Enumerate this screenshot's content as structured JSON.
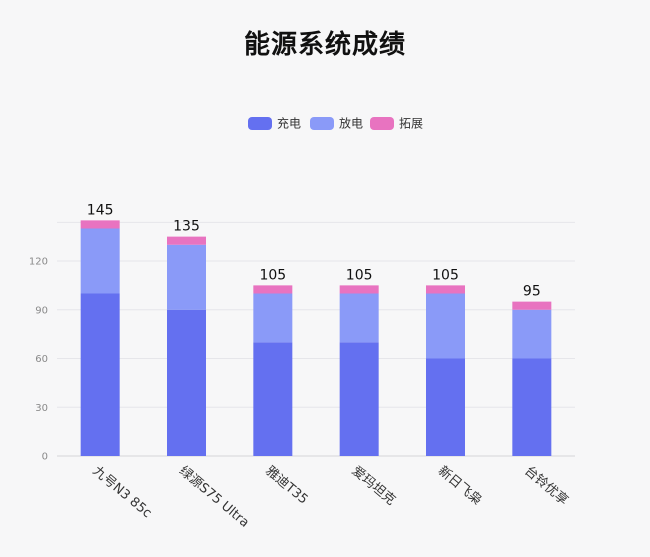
{
  "chart_data": {
    "type": "bar",
    "stacked": true,
    "title": "能源系统成绩",
    "categories": [
      "九号N3 85c",
      "绿源S75 Ultra",
      "雅迪T35",
      "爱玛坦克",
      "新日飞枭",
      "台铃优享"
    ],
    "series": [
      {
        "name": "充电",
        "color": "#6470f0",
        "values": [
          100,
          90,
          70,
          70,
          60,
          60
        ]
      },
      {
        "name": "放电",
        "color": "#8a9af8",
        "values": [
          40,
          40,
          30,
          30,
          40,
          30
        ]
      },
      {
        "name": "拓展",
        "color": "#e873c0",
        "values": [
          5,
          5,
          5,
          5,
          5,
          5
        ]
      }
    ],
    "totals": [
      145,
      135,
      105,
      105,
      105,
      95
    ],
    "ylim": [
      0,
      145
    ],
    "yticks": [
      0,
      30,
      60,
      90,
      120
    ],
    "legend_position": "top-center",
    "grid": true
  }
}
